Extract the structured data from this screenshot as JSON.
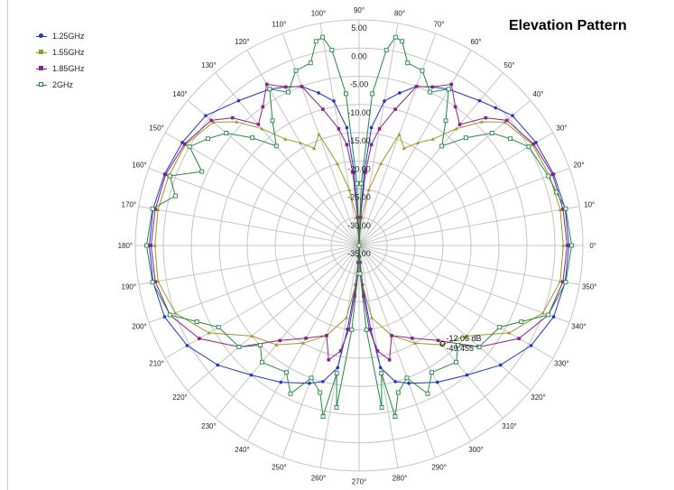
{
  "chart_title": "Elevation Pattern",
  "chart_data": {
    "type": "polar-line",
    "title": "Elevation Pattern",
    "angle_ticks": [
      "0°",
      "10°",
      "20°",
      "30°",
      "40°",
      "50°",
      "60°",
      "70°",
      "80°",
      "90°",
      "100°",
      "110°",
      "120°",
      "130°",
      "140°",
      "150°",
      "160°",
      "170°",
      "180°",
      "190°",
      "200°",
      "210°",
      "220°",
      "230°",
      "240°",
      "250°",
      "260°",
      "270°",
      "280°",
      "290°",
      "300°",
      "310°",
      "320°",
      "330°",
      "340°",
      "350°"
    ],
    "radial_ticks": [
      "5.00",
      "0.00",
      "-5.00",
      "-10.00",
      "-15.00",
      "-20.00",
      "-25.00",
      "-30.00",
      "-35.00"
    ],
    "radial_range": [
      -35,
      5
    ],
    "legend_position": "top-left",
    "grid": true,
    "cursor_annotation": [
      "-12.06 dB",
      "-49.455 °"
    ],
    "series": [
      {
        "name": "1.25GHz",
        "color": "#2233cc",
        "marker": "circle",
        "angles": [
          0,
          10,
          20,
          30,
          40,
          45,
          50,
          60,
          65,
          70,
          75,
          80,
          84,
          86,
          88,
          90,
          92,
          94,
          96,
          100,
          105,
          110,
          115,
          120,
          130,
          140,
          150,
          160,
          170,
          180,
          190,
          200,
          210,
          220,
          230,
          240,
          250,
          255,
          260,
          262,
          265,
          268,
          270,
          272,
          275,
          278,
          280,
          285,
          290,
          300,
          310,
          320,
          330,
          340,
          350
        ],
        "values": [
          2.5,
          2.4,
          2.0,
          1.5,
          0.8,
          -0.5,
          -1.5,
          -3.0,
          -4.0,
          -5.0,
          -7.0,
          -9.0,
          -14.0,
          -22.0,
          -32.0,
          -35.0,
          -32.0,
          -22.0,
          -14.0,
          -9.0,
          -7.0,
          -5.0,
          -4.0,
          -3.0,
          -1.5,
          0.8,
          1.5,
          2.0,
          2.4,
          2.5,
          2.4,
          2.0,
          0.5,
          -2.0,
          -5.0,
          -7.0,
          -9.0,
          -10.0,
          -13.0,
          -20.0,
          -28.0,
          -33.0,
          -35.0,
          -33.0,
          -28.0,
          -20.0,
          -13.0,
          -10.0,
          -9.0,
          -7.0,
          -5.0,
          -2.0,
          0.5,
          2.0,
          2.4
        ]
      },
      {
        "name": "1.55GHz",
        "color": "#9a9a22",
        "marker": "triangle",
        "angles": [
          0,
          10,
          20,
          30,
          40,
          45,
          50,
          55,
          60,
          65,
          70,
          75,
          80,
          85,
          88,
          90,
          92,
          95,
          100,
          105,
          110,
          115,
          120,
          125,
          130,
          135,
          140,
          150,
          160,
          170,
          180,
          190,
          200,
          210,
          220,
          230,
          240,
          250,
          260,
          265,
          268,
          270,
          272,
          275,
          280,
          290,
          300,
          310,
          320,
          330,
          340,
          350
        ],
        "values": [
          1.5,
          1.5,
          1.2,
          0.8,
          -1.0,
          -4.0,
          -8.0,
          -12.0,
          -14.0,
          -16.0,
          -14.0,
          -20.0,
          -25.0,
          -30.0,
          -34.0,
          -35.0,
          -34.0,
          -30.0,
          -25.0,
          -20.0,
          -14.0,
          -16.0,
          -14.0,
          -12.0,
          -8.0,
          -4.0,
          -1.0,
          0.8,
          1.2,
          1.5,
          1.5,
          1.5,
          0.0,
          -4.0,
          -10.0,
          -12.0,
          -15.0,
          -18.0,
          -22.0,
          -28.0,
          -33.0,
          -35.0,
          -33.0,
          -28.0,
          -22.0,
          -18.0,
          -15.0,
          -12.0,
          -10.0,
          -4.0,
          0.0,
          1.5
        ]
      },
      {
        "name": "1.85GHz",
        "color": "#882288",
        "marker": "square",
        "angles": [
          0,
          10,
          20,
          30,
          40,
          45,
          50,
          55,
          60,
          65,
          70,
          75,
          80,
          83,
          85,
          87,
          90,
          93,
          95,
          97,
          100,
          105,
          110,
          115,
          120,
          125,
          130,
          135,
          140,
          150,
          160,
          170,
          180,
          190,
          200,
          210,
          220,
          230,
          240,
          250,
          255,
          260,
          263,
          265,
          267,
          270,
          273,
          275,
          277,
          280,
          285,
          290,
          300,
          310,
          320,
          330,
          340,
          350
        ],
        "values": [
          2.2,
          2.0,
          1.8,
          1.0,
          -0.5,
          -3.0,
          -7.0,
          -5.0,
          -2.0,
          -4.0,
          -5.0,
          -10.0,
          -14.0,
          -17.0,
          -22.0,
          -30.0,
          -35.0,
          -30.0,
          -22.0,
          -17.0,
          -14.0,
          -10.0,
          -5.0,
          -4.0,
          -2.0,
          -5.0,
          -7.0,
          -3.0,
          -0.5,
          1.0,
          1.8,
          2.0,
          2.2,
          2.0,
          1.0,
          -2.0,
          -7.0,
          -13.0,
          -16.0,
          -18.0,
          -14.0,
          -16.0,
          -20.0,
          -26.0,
          -32.0,
          -35.0,
          -32.0,
          -26.0,
          -20.0,
          -16.0,
          -14.0,
          -18.0,
          -16.0,
          -13.0,
          -7.0,
          -2.0,
          1.0,
          2.0
        ]
      },
      {
        "name": "2GHz",
        "color": "#228844",
        "marker": "square-open",
        "angles": [
          0,
          10,
          15,
          20,
          30,
          35,
          40,
          45,
          50,
          55,
          60,
          65,
          70,
          75,
          78,
          80,
          82,
          85,
          88,
          90,
          92,
          95,
          98,
          100,
          102,
          105,
          110,
          115,
          120,
          125,
          130,
          135,
          140,
          145,
          150,
          155,
          160,
          165,
          170,
          180,
          190,
          200,
          205,
          210,
          220,
          225,
          230,
          240,
          245,
          250,
          255,
          258,
          260,
          262,
          265,
          268,
          270,
          272,
          275,
          278,
          280,
          282,
          285,
          290,
          295,
          300,
          310,
          315,
          320,
          330,
          335,
          340,
          350
        ],
        "values": [
          3.0,
          2.5,
          1.5,
          1.0,
          0.0,
          -2.0,
          -4.0,
          -8.0,
          -12.0,
          -8.0,
          -3.0,
          -5.0,
          -2.0,
          -1.5,
          2.0,
          2.5,
          0.0,
          -8.0,
          -24.0,
          -35.0,
          -24.0,
          -8.0,
          0.0,
          2.5,
          2.0,
          -1.5,
          -2.0,
          -5.0,
          -3.0,
          -8.0,
          -12.0,
          -8.0,
          -4.0,
          -2.0,
          0.0,
          -4.0,
          1.0,
          -1.0,
          2.5,
          3.0,
          2.5,
          1.0,
          -3.0,
          -6.0,
          -7.0,
          -10.0,
          -8.0,
          -9.0,
          -6.0,
          -10.0,
          -8.0,
          -4.0,
          -12.0,
          -6.0,
          -20.0,
          -30.0,
          -35.0,
          -30.0,
          -20.0,
          -6.0,
          -12.0,
          -4.0,
          -8.0,
          -10.0,
          -6.0,
          -9.0,
          -8.0,
          -10.0,
          -7.0,
          -6.0,
          -3.0,
          1.0,
          2.5
        ]
      }
    ]
  }
}
